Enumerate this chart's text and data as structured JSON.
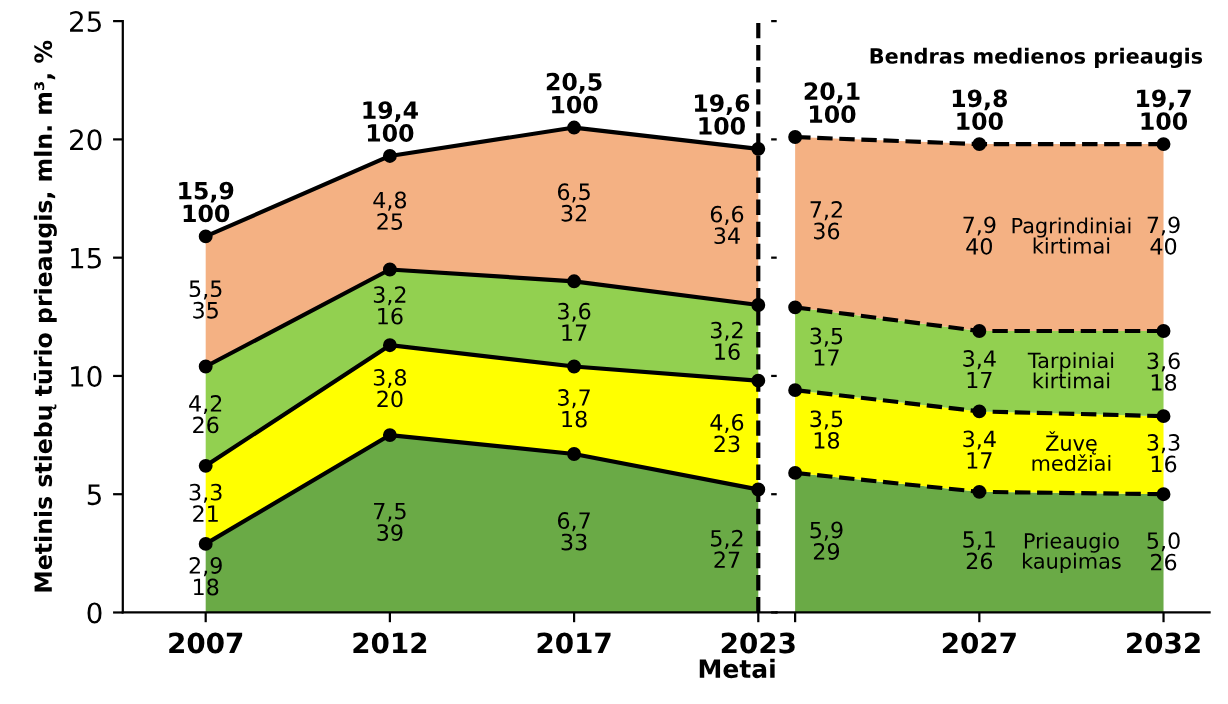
{
  "chart_data": [
    {
      "type": "area",
      "stacked": true,
      "marker": "circle",
      "tick_labels": true,
      "legend": false,
      "grid": false,
      "xlabel": "Metai",
      "ylabel": "Metinis stiebų tūrio prieaugis, mln. m³, %",
      "categories": [
        "2007",
        "2012",
        "2017",
        "2023"
      ],
      "ylim": [
        0,
        25
      ],
      "yticks": [
        0,
        5,
        10,
        15,
        20,
        25
      ],
      "series": [
        {
          "color": "#6aaa46",
          "values": [
            2.9,
            7.5,
            6.7,
            5.2
          ],
          "line_style": "solid",
          "value_labels": [
            "2,9\n18",
            "7,5\n39",
            "6,7\n33",
            "5,2\n27"
          ]
        },
        {
          "color": "#ffff00",
          "values": [
            3.3,
            3.8,
            3.7,
            4.6
          ],
          "line_style": "solid",
          "value_labels": [
            "3,3\n21",
            "3,8\n20",
            "3,7\n18",
            "4,6\n23"
          ]
        },
        {
          "color": "#92d050",
          "values": [
            4.2,
            3.2,
            3.6,
            3.2
          ],
          "line_style": "solid",
          "value_labels": [
            "4,2\n26",
            "3,2\n16",
            "3,6\n17",
            "3,2\n16"
          ]
        },
        {
          "color": "#f4b183",
          "values": [
            5.5,
            4.8,
            6.5,
            6.6
          ],
          "line_style": "solid",
          "value_labels": [
            "5,5\n35",
            "4,8\n25",
            "6,5\n32",
            "6,6\n34"
          ]
        }
      ],
      "totals": [
        "15,9\n100",
        "19,4\n100",
        "20,5\n100",
        "19,6\n100"
      ],
      "ref_lines": [
        {
          "axis": "x",
          "value": "2023",
          "line_style": "dashed",
          "color": "#000000"
        }
      ]
    },
    {
      "type": "area",
      "stacked": true,
      "marker": "circle",
      "tick_labels": "x",
      "categories": [
        null,
        "2027",
        "2032"
      ],
      "ylim": [
        0,
        25
      ],
      "yticks": [
        0,
        5,
        10,
        15,
        20,
        25
      ],
      "legend": false,
      "grid": false,
      "series": [
        {
          "name": "Prieaugio\nkaupimas",
          "color": "#6aaa46",
          "values": [
            5.9,
            5.1,
            5.0
          ],
          "line_style": "dashed",
          "value_labels": [
            "5,9\n29",
            "5,1\n26",
            "5,0\n26"
          ]
        },
        {
          "name": "Žuvę\nmedžiai",
          "color": "#ffff00",
          "values": [
            3.5,
            3.4,
            3.3
          ],
          "line_style": "dashed",
          "value_labels": [
            "3,5\n18",
            "3,4\n17",
            "3,3\n16"
          ]
        },
        {
          "name": "Tarpiniai\nkirtimai",
          "color": "#92d050",
          "values": [
            3.5,
            3.4,
            3.6
          ],
          "line_style": "dashed",
          "value_labels": [
            "3,5\n17",
            "3,4\n17",
            "3,6\n18"
          ]
        },
        {
          "name": "Pagrindiniai\nkirtimai",
          "color": "#f4b183",
          "values": [
            7.2,
            7.9,
            7.9
          ],
          "line_style": "dashed",
          "value_labels": [
            "7,2\n36",
            "7,9\n40",
            "7,9\n40"
          ]
        }
      ],
      "totals": [
        "20,1\n100",
        "19,8\n100",
        "19,7\n100"
      ],
      "annotations": [
        "Bendras medienos prieaugis"
      ]
    }
  ]
}
